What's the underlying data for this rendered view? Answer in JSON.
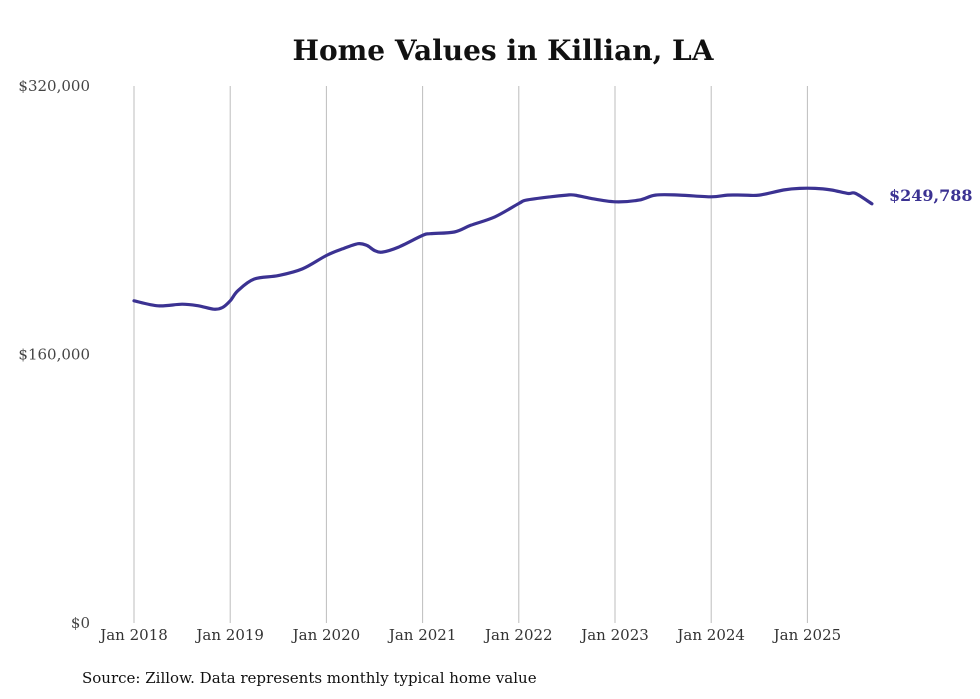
{
  "chart_data": {
    "type": "line",
    "title": "Home Values in Killian, LA",
    "xlabel": "",
    "ylabel": "",
    "ylim": [
      0,
      320000
    ],
    "y_ticks": [
      {
        "value": 0,
        "label": "$0"
      },
      {
        "value": 160000,
        "label": "$160,000"
      },
      {
        "value": 320000,
        "label": "$320,000"
      }
    ],
    "x_ticks": [
      {
        "value": 2018.0,
        "label": "Jan 2018"
      },
      {
        "value": 2019.0,
        "label": "Jan 2019"
      },
      {
        "value": 2020.0,
        "label": "Jan 2020"
      },
      {
        "value": 2021.0,
        "label": "Jan 2021"
      },
      {
        "value": 2022.0,
        "label": "Jan 2022"
      },
      {
        "value": 2023.0,
        "label": "Jan 2023"
      },
      {
        "value": 2024.0,
        "label": "Jan 2024"
      },
      {
        "value": 2025.0,
        "label": "Jan 2025"
      }
    ],
    "x_range": [
      2018.0,
      2025.67
    ],
    "grid": "vertical",
    "series": [
      {
        "name": "Typical home value",
        "color": "#3b3292",
        "x": [
          2018.0,
          2018.25,
          2018.5,
          2018.67,
          2018.83,
          2018.92,
          2019.0,
          2019.08,
          2019.25,
          2019.5,
          2019.75,
          2020.0,
          2020.17,
          2020.33,
          2020.42,
          2020.5,
          2020.58,
          2020.75,
          2021.0,
          2021.08,
          2021.33,
          2021.5,
          2021.75,
          2022.0,
          2022.08,
          2022.33,
          2022.5,
          2022.58,
          2022.75,
          2023.0,
          2023.25,
          2023.42,
          2023.67,
          2024.0,
          2024.17,
          2024.33,
          2024.5,
          2024.75,
          2024.92,
          2025.08,
          2025.25,
          2025.42,
          2025.5,
          2025.67
        ],
        "values": [
          192000,
          189000,
          190000,
          189000,
          187000,
          188000,
          192000,
          198000,
          205000,
          207000,
          211000,
          219000,
          223000,
          226000,
          225000,
          222000,
          221000,
          224000,
          231000,
          232000,
          233000,
          237000,
          242000,
          250000,
          252000,
          254000,
          255000,
          255000,
          253000,
          251000,
          252000,
          255000,
          255000,
          254000,
          255000,
          255000,
          255000,
          258000,
          259000,
          259000,
          258000,
          256000,
          256000,
          249788
        ]
      }
    ],
    "end_label": "$249,788",
    "source": "Source: Zillow. Data represents monthly typical home value"
  }
}
